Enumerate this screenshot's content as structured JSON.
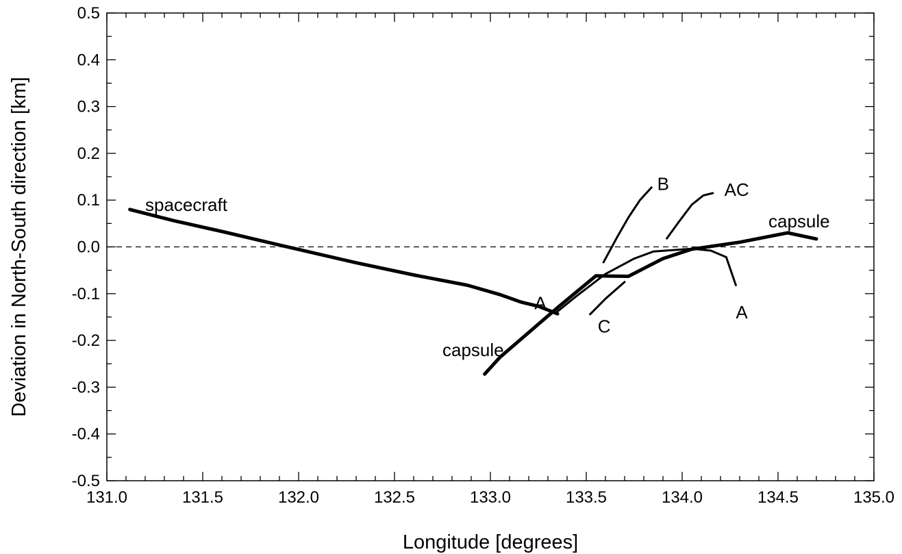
{
  "chart_data": {
    "type": "line",
    "title": "",
    "xlabel": "Longitude [degrees]",
    "ylabel": "Deviation in North-South direction [km]",
    "xlim": [
      131.0,
      135.0
    ],
    "ylim": [
      -0.5,
      0.5
    ],
    "x_ticks": [
      "131.0",
      "131.5",
      "132.0",
      "132.5",
      "133.0",
      "133.5",
      "134.0",
      "134.5",
      "135.0"
    ],
    "y_ticks": [
      "0.5",
      "0.4",
      "0.3",
      "0.2",
      "0.1",
      "0.0",
      "-0.1",
      "-0.2",
      "-0.3",
      "-0.4",
      "-0.5"
    ],
    "grid": false,
    "reference_line": {
      "y": 0.0,
      "style": "dashed"
    },
    "series": [
      {
        "style": "thick",
        "x": [
          131.12,
          131.35,
          131.6,
          131.9,
          132.3,
          132.6,
          132.88,
          133.05,
          133.16,
          133.25,
          133.35
        ],
        "y": [
          0.08,
          0.056,
          0.033,
          0.004,
          -0.034,
          -0.06,
          -0.082,
          -0.102,
          -0.118,
          -0.127,
          -0.143
        ]
      },
      {
        "style": "thick",
        "x": [
          132.97,
          133.05,
          133.2,
          133.35,
          133.55,
          133.72,
          133.9,
          134.05,
          134.3,
          134.55,
          134.7
        ],
        "y": [
          -0.272,
          -0.236,
          -0.183,
          -0.13,
          -0.062,
          -0.063,
          -0.025,
          -0.005,
          0.01,
          0.03,
          0.017
        ]
      },
      {
        "style": "thin",
        "x": [
          133.35,
          133.45,
          133.6,
          133.75,
          133.85,
          133.95,
          134.05,
          134.15,
          134.23,
          134.28
        ],
        "y": [
          -0.138,
          -0.105,
          -0.058,
          -0.025,
          -0.01,
          -0.007,
          -0.004,
          -0.008,
          -0.022,
          -0.082
        ]
      },
      {
        "style": "thin",
        "x": [
          133.52,
          133.6,
          133.7
        ],
        "y": [
          -0.144,
          -0.111,
          -0.075
        ]
      },
      {
        "style": "thin",
        "x": [
          133.59,
          133.66,
          133.72,
          133.78,
          133.84
        ],
        "y": [
          -0.033,
          0.02,
          0.063,
          0.1,
          0.127
        ]
      },
      {
        "style": "thin",
        "x": [
          133.92,
          133.98,
          134.05,
          134.11,
          134.16
        ],
        "y": [
          0.018,
          0.052,
          0.09,
          0.11,
          0.115
        ]
      }
    ],
    "annotations": [
      {
        "text": "spacecraft",
        "x": 131.2,
        "y": 0.09
      },
      {
        "text": "capsule",
        "x": 132.75,
        "y": -0.22
      },
      {
        "text": "capsule",
        "x": 134.45,
        "y": 0.055
      },
      {
        "text": "A",
        "x": 133.23,
        "y": -0.12
      },
      {
        "text": "A",
        "x": 134.28,
        "y": -0.14
      },
      {
        "text": "B",
        "x": 133.87,
        "y": 0.135
      },
      {
        "text": "C",
        "x": 133.56,
        "y": -0.17
      },
      {
        "text": "AC",
        "x": 134.22,
        "y": 0.122
      }
    ]
  }
}
